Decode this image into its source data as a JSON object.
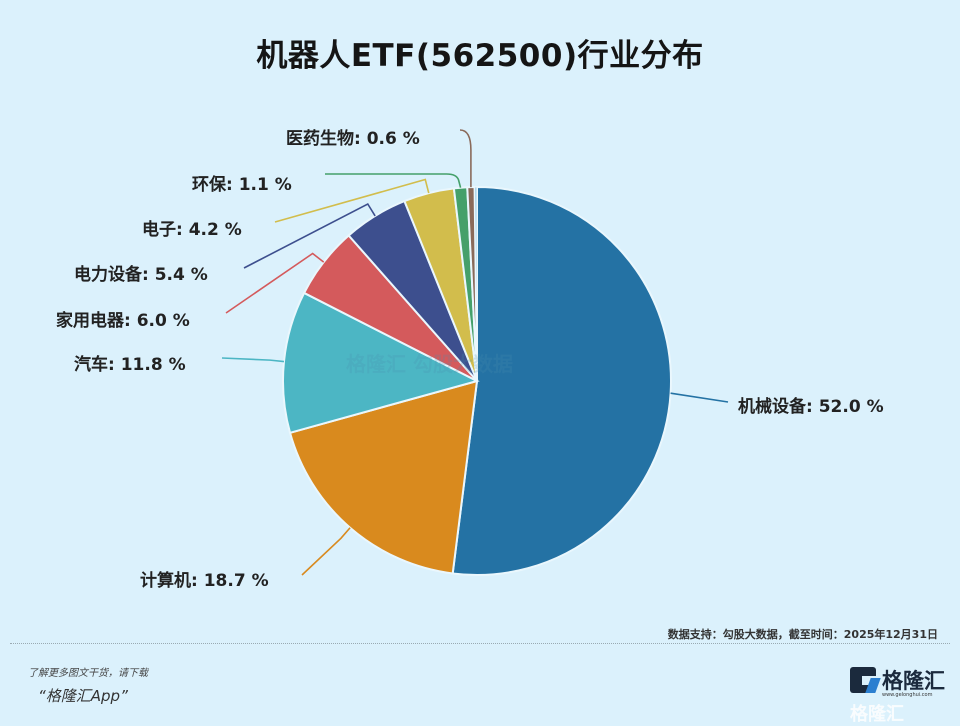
{
  "title": "机器人ETF(562500)行业分布",
  "chart_data": {
    "type": "pie",
    "title": "机器人ETF(562500)行业分布",
    "start_angle": "12 o'clock, clockwise",
    "categories": [
      "机械设备",
      "计算机",
      "汽车",
      "家用电器",
      "电力设备",
      "电子",
      "环保",
      "医药生物"
    ],
    "values": [
      52.0,
      18.7,
      11.8,
      6.0,
      5.4,
      4.2,
      1.1,
      0.6
    ],
    "unit": "%",
    "colors": [
      "#2472a4",
      "#d98a1e",
      "#4cb6c4",
      "#d45a5c",
      "#3d4f8e",
      "#d2bd4c",
      "#45a06a",
      "#8a6a5a"
    ],
    "labels": [
      "机械设备: 52.0 %",
      "计算机: 18.7 %",
      "汽车: 11.8 %",
      "家用电器: 6.0 %",
      "电力设备: 5.4 %",
      "电子: 4.2 %",
      "环保: 1.1 %",
      "医药生物: 0.6 %"
    ],
    "legend": "none (callout labels)"
  },
  "watermark_center": "格隆汇   勾股大数据",
  "footer": {
    "source": "数据支持：勾股大数据，截至时间：2025年12月31日",
    "promo_line1": "了解更多图文干货，请下载",
    "promo_line2": "“格隆汇App”",
    "brand_name": "格隆汇",
    "brand_url": "www.gelonghui.com",
    "watermark": "格隆汇"
  }
}
